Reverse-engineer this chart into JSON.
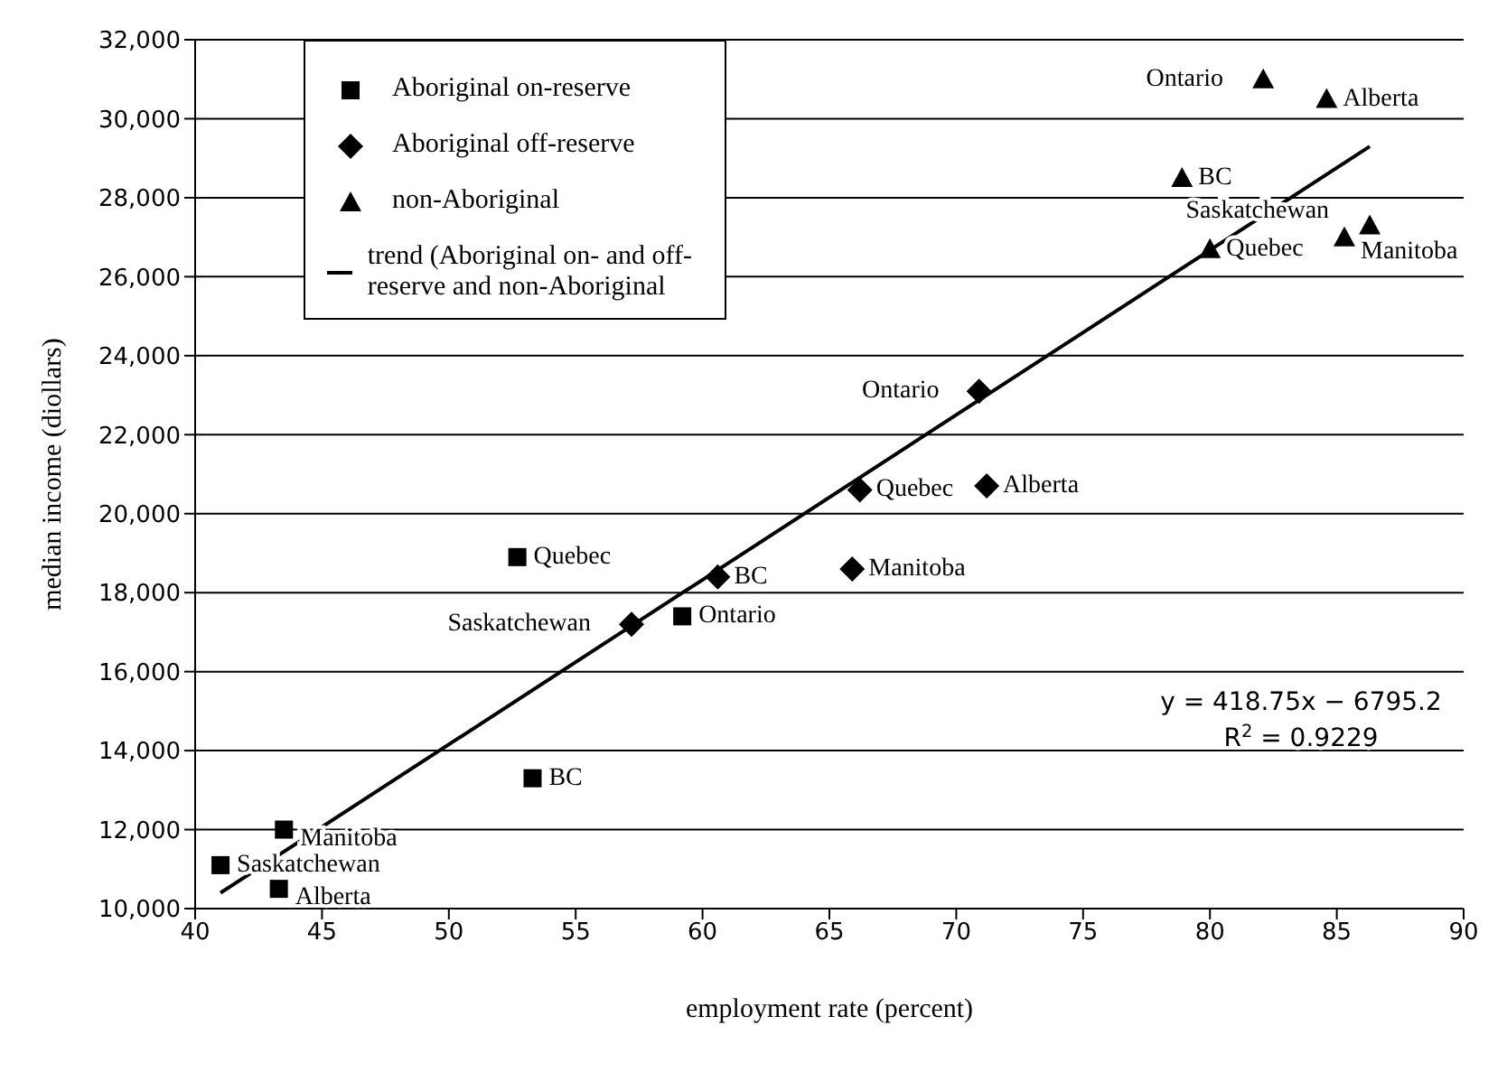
{
  "chart_data": {
    "type": "scatter",
    "xlabel": "employment rate (percent)",
    "ylabel": "median income (diollars)",
    "xlim": [
      40,
      90
    ],
    "xticks": [
      40,
      45,
      50,
      55,
      60,
      65,
      70,
      75,
      80,
      85,
      90
    ],
    "ylim": [
      10000,
      32000
    ],
    "yticks": [
      {
        "value": 10000,
        "label": "10,000"
      },
      {
        "value": 12000,
        "label": "12,000"
      },
      {
        "value": 14000,
        "label": "14,000"
      },
      {
        "value": 16000,
        "label": "16,000"
      },
      {
        "value": 18000,
        "label": "18,000"
      },
      {
        "value": 20000,
        "label": "20,000"
      },
      {
        "value": 22000,
        "label": "22,000"
      },
      {
        "value": 24000,
        "label": "24,000"
      },
      {
        "value": 26000,
        "label": "26,000"
      },
      {
        "value": 28000,
        "label": "28,000"
      },
      {
        "value": 30000,
        "label": "30,000"
      },
      {
        "value": 32000,
        "label": "32,000"
      }
    ],
    "grid": "y",
    "legend": "top left",
    "series": [
      {
        "name": "Aboriginal on-reserve",
        "color": "#000000",
        "marker": "square",
        "x": [
          52.7,
          59.2,
          53.3,
          43.5,
          41.0,
          43.3
        ],
        "values": [
          18900,
          17400,
          13300,
          12000,
          11100,
          10500
        ],
        "value_labels": [
          "Quebec",
          "Ontario",
          "BC",
          "Manitoba",
          "Saskatchewan",
          "Alberta"
        ]
      },
      {
        "name": "Aboriginal off-reserve",
        "color": "#000000",
        "marker": "diamond",
        "x": [
          57.2,
          60.6,
          66.2,
          70.9,
          71.2,
          65.9
        ],
        "values": [
          17200,
          18400,
          20600,
          23100,
          20700,
          18600
        ],
        "value_labels": [
          "Saskatchewan",
          "BC",
          "Quebec",
          "Ontario",
          "Alberta",
          "Manitoba"
        ]
      },
      {
        "name": "non-Aboriginal",
        "color": "#000000",
        "marker": "triangle",
        "x": [
          82.1,
          84.6,
          78.9,
          80.0,
          86.3,
          85.3
        ],
        "values": [
          31000,
          30500,
          28500,
          26700,
          27300,
          27000
        ],
        "value_labels": [
          "Ontario",
          "Alberta",
          "BC",
          "Quebec",
          "Saskatchewan",
          "Manitoba"
        ]
      },
      {
        "name": "trend (Aboriginal on- and off-reserve and non-Aboriginal",
        "type": "line",
        "color": "#000000",
        "marker": "none",
        "x": [
          41.0,
          86.3
        ],
        "values": [
          10400,
          29300
        ]
      }
    ],
    "annotations": [
      "y = 418.75x − 6795.2",
      "R$^{2}$ = 0.9229"
    ]
  }
}
